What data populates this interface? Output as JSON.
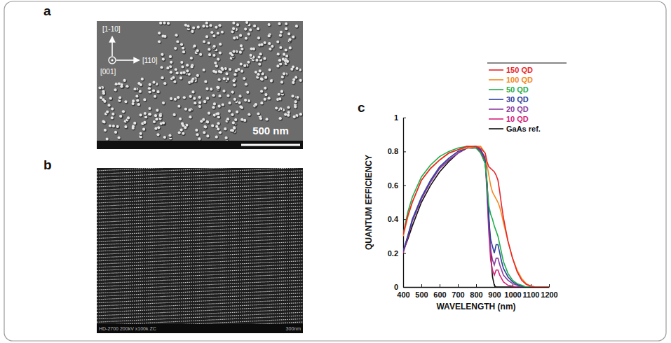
{
  "panel_labels": [
    "a",
    "b",
    "c"
  ],
  "panels": {
    "a": {
      "directions": [
        "[1-10]",
        "[001]",
        "[110]"
      ],
      "scale_bar": "500 nm"
    },
    "b": {
      "footer": "HD-2700 200kV x100k ZC",
      "scale_bar": "300nm"
    }
  },
  "chart_data": {
    "type": "line",
    "x_label": "WAVELENGTH (nm)",
    "y_label": "QUANTUM EFFICIENCY",
    "xlim": [
      400,
      1200
    ],
    "ylim": [
      0,
      1
    ],
    "xticks": [
      400,
      500,
      600,
      700,
      800,
      900,
      1000,
      1100,
      1200
    ],
    "yticks": [
      0,
      0.2,
      0.4,
      0.6,
      0.8,
      1
    ],
    "grid": false,
    "legend": "upper right",
    "x": [
      400,
      425,
      450,
      500,
      550,
      600,
      650,
      700,
      750,
      800,
      825,
      850,
      860,
      870,
      880,
      890,
      900,
      910,
      920,
      930,
      940,
      950,
      975,
      1000,
      1025,
      1050,
      1075,
      1100,
      1125,
      1150,
      1200
    ],
    "series": [
      {
        "name": "150 QD",
        "color": "#e8262a",
        "values": [
          0.31,
          0.42,
          0.5,
          0.63,
          0.7,
          0.75,
          0.79,
          0.81,
          0.83,
          0.83,
          0.82,
          0.79,
          0.74,
          0.71,
          0.7,
          0.69,
          0.68,
          0.66,
          0.63,
          0.56,
          0.48,
          0.41,
          0.27,
          0.17,
          0.09,
          0.04,
          0.015,
          0.005,
          0,
          0,
          0
        ]
      },
      {
        "name": "100 QD",
        "color": "#f5891f",
        "values": [
          0.3,
          0.41,
          0.5,
          0.63,
          0.7,
          0.75,
          0.79,
          0.81,
          0.82,
          0.83,
          0.83,
          0.79,
          0.72,
          0.66,
          0.6,
          0.56,
          0.54,
          0.52,
          0.5,
          0.47,
          0.43,
          0.38,
          0.27,
          0.17,
          0.1,
          0.05,
          0.02,
          0.005,
          0,
          0,
          0
        ]
      },
      {
        "name": "50 QD",
        "color": "#1fae4b",
        "values": [
          0.31,
          0.44,
          0.53,
          0.65,
          0.72,
          0.77,
          0.8,
          0.82,
          0.83,
          0.82,
          0.79,
          0.73,
          0.6,
          0.48,
          0.43,
          0.4,
          0.36,
          0.33,
          0.3,
          0.25,
          0.2,
          0.15,
          0.08,
          0.04,
          0.02,
          0.01,
          0,
          0,
          0,
          0,
          0
        ]
      },
      {
        "name": "30 QD",
        "color": "#2e3f9e",
        "values": [
          0.21,
          0.3,
          0.4,
          0.53,
          0.63,
          0.71,
          0.76,
          0.8,
          0.82,
          0.83,
          0.81,
          0.76,
          0.6,
          0.4,
          0.28,
          0.24,
          0.2,
          0.25,
          0.25,
          0.2,
          0.15,
          0.11,
          0.06,
          0.03,
          0.015,
          0.005,
          0,
          0,
          0,
          0,
          0
        ]
      },
      {
        "name": "20 QD",
        "color": "#8a3fa0",
        "values": [
          0.21,
          0.3,
          0.39,
          0.52,
          0.62,
          0.7,
          0.75,
          0.79,
          0.82,
          0.83,
          0.81,
          0.76,
          0.58,
          0.36,
          0.22,
          0.16,
          0.13,
          0.17,
          0.17,
          0.13,
          0.1,
          0.07,
          0.04,
          0.02,
          0.01,
          0,
          0,
          0,
          0,
          0,
          0
        ]
      },
      {
        "name": "10 QD",
        "color": "#d4237a",
        "values": [
          0.2,
          0.29,
          0.39,
          0.52,
          0.62,
          0.7,
          0.75,
          0.79,
          0.82,
          0.83,
          0.8,
          0.75,
          0.55,
          0.32,
          0.16,
          0.1,
          0.07,
          0.1,
          0.1,
          0.07,
          0.05,
          0.03,
          0.01,
          0.005,
          0,
          0,
          0,
          0,
          0,
          0,
          0
        ]
      },
      {
        "name": "GaAs ref.",
        "color": "#111111",
        "values": [
          0.21,
          0.28,
          0.36,
          0.5,
          0.6,
          0.68,
          0.74,
          0.79,
          0.82,
          0.82,
          0.8,
          0.73,
          0.62,
          0.42,
          0.2,
          0.06,
          0.01,
          0,
          0,
          0,
          0,
          0,
          0,
          0,
          0,
          0,
          0,
          0,
          0,
          0,
          0
        ]
      }
    ]
  }
}
